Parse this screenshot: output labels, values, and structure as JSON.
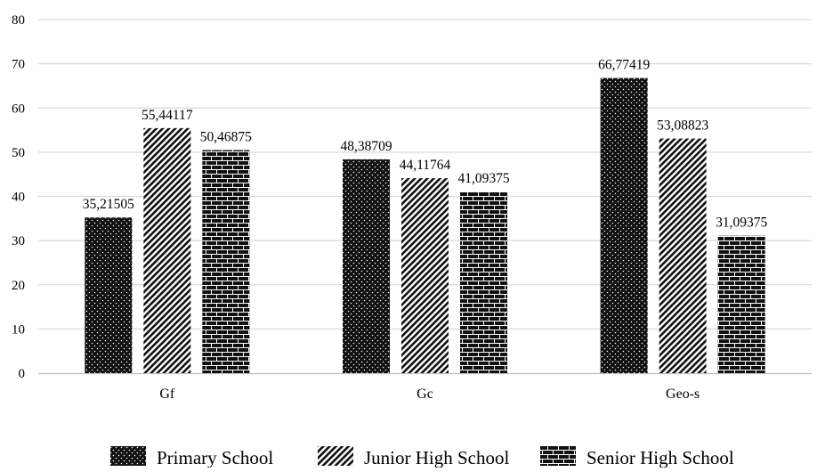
{
  "chart_data": {
    "type": "bar",
    "title": "",
    "xlabel": "",
    "ylabel": "",
    "categories": [
      "Gf",
      "Gc",
      "Geo-s"
    ],
    "series": [
      {
        "name": "Primary School",
        "values": [
          35.21505,
          48.38709,
          66.77419
        ],
        "labels": [
          "35,21505",
          "48,38709",
          "66,77419"
        ],
        "pattern": "dots"
      },
      {
        "name": "Junior High School",
        "values": [
          55.44117,
          44.11764,
          53.08823
        ],
        "labels": [
          "55,44117",
          "44,11764",
          "53,08823"
        ],
        "pattern": "diagonal-stripes"
      },
      {
        "name": "Senior High School",
        "values": [
          50.46875,
          41.09375,
          31.09375
        ],
        "labels": [
          "50,46875",
          "41,09375",
          "31,09375"
        ],
        "pattern": "bricks"
      }
    ],
    "ylim": [
      0,
      80
    ],
    "yticks": [
      "0",
      "10",
      "20",
      "30",
      "40",
      "50",
      "60",
      "70",
      "80"
    ],
    "grid": true,
    "legend_position": "bottom",
    "colors": {
      "bar_fill": "#111111",
      "pattern_ink": "#ffffff",
      "grid": "#d9d9d9",
      "axis": "#c0c0c0",
      "text": "#000000"
    }
  }
}
